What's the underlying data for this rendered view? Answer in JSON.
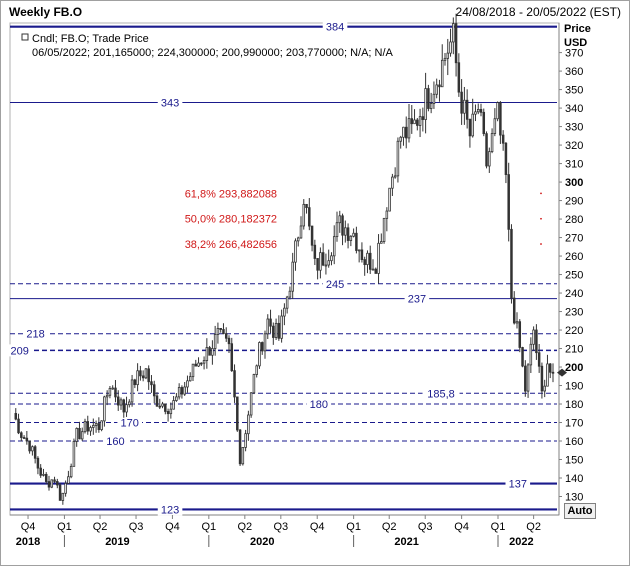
{
  "window": {
    "title": "Weekly FB.O",
    "date_range": "24/08/2018 - 20/05/2022 (EST)"
  },
  "legend": {
    "line1": "Cndl; FB.O; Trade Price",
    "line2": "06/05/2022; 201,165000; 224,300000; 200,990000; 203,770000; N/A; N/A"
  },
  "axis": {
    "price_label": "Price",
    "currency_label": "USD",
    "auto_button": "Auto"
  },
  "colors": {
    "level_line": "#1a1a8c",
    "fib_text": "#d01818",
    "candle": "#333333"
  },
  "chart_data": {
    "type": "candlestick",
    "ylim": [
      120,
      386
    ],
    "y_ticks": [
      130,
      140,
      150,
      160,
      170,
      180,
      190,
      200,
      210,
      220,
      230,
      240,
      250,
      260,
      270,
      280,
      290,
      300,
      310,
      320,
      330,
      340,
      350,
      360,
      370
    ],
    "y_ticks_bold": [
      200,
      300
    ],
    "x_ticks": [
      {
        "label": "Q4",
        "date": "2018-10-01"
      },
      {
        "label": "Q1",
        "date": "2019-01-01"
      },
      {
        "label": "Q2",
        "date": "2019-04-01"
      },
      {
        "label": "Q3",
        "date": "2019-07-01"
      },
      {
        "label": "Q4",
        "date": "2019-10-01"
      },
      {
        "label": "Q1",
        "date": "2020-01-01"
      },
      {
        "label": "Q2",
        "date": "2020-04-01"
      },
      {
        "label": "Q3",
        "date": "2020-07-01"
      },
      {
        "label": "Q4",
        "date": "2020-10-01"
      },
      {
        "label": "Q1",
        "date": "2021-01-01"
      },
      {
        "label": "Q2",
        "date": "2021-04-01"
      },
      {
        "label": "Q3",
        "date": "2021-07-01"
      },
      {
        "label": "Q4",
        "date": "2021-10-01"
      },
      {
        "label": "Q1",
        "date": "2022-01-01"
      },
      {
        "label": "Q2",
        "date": "2022-04-01"
      }
    ],
    "x_years": [
      {
        "label": "2018",
        "date": "2018-10-01"
      },
      {
        "label": "2019",
        "date": "2019-05-15"
      },
      {
        "label": "2020",
        "date": "2020-05-15"
      },
      {
        "label": "2021",
        "date": "2021-05-15"
      },
      {
        "label": "2022",
        "date": "2022-03-01"
      }
    ],
    "x_year_dividers": [
      "2019-01-01",
      "2020-01-01",
      "2021-01-01",
      "2022-01-01"
    ],
    "x_range": [
      "2018-08-24",
      "2022-05-20"
    ],
    "levels": [
      {
        "value": 384,
        "label": "384",
        "style": "thick",
        "label_date": "2020-11-15"
      },
      {
        "value": 343,
        "label": "343",
        "style": "solid",
        "label_date": "2019-09-25"
      },
      {
        "value": 245,
        "label": "245",
        "style": "dashed",
        "label_date": "2020-11-15"
      },
      {
        "value": 237,
        "label": "237",
        "style": "solid",
        "label_date": "2021-06-10"
      },
      {
        "value": 218,
        "label": "218",
        "style": "dashed",
        "label_date": "2018-10-20"
      },
      {
        "value": 209,
        "label": "209",
        "style": "thickdashed",
        "label_date": "2018-09-10"
      },
      {
        "value": 185.8,
        "label": "185,8",
        "style": "dashed",
        "label_date": "2021-08-10"
      },
      {
        "value": 180,
        "label": "180",
        "style": "dashed",
        "label_date": "2020-10-05"
      },
      {
        "value": 170,
        "label": "170",
        "style": "dashed",
        "label_date": "2019-06-15"
      },
      {
        "value": 160,
        "label": "160",
        "style": "dashed",
        "label_date": "2019-05-10"
      },
      {
        "value": 137,
        "label": "137",
        "style": "thick",
        "label_date": "2022-02-20"
      },
      {
        "value": 123,
        "label": "123",
        "style": "thick",
        "label_date": "2019-09-25"
      }
    ],
    "fib_levels": [
      {
        "value": 293.882088,
        "label": "61,8% 293,882088",
        "label_date": "2019-11-01"
      },
      {
        "value": 280.182372,
        "label": "50,0% 280,182372",
        "label_date": "2019-11-01"
      },
      {
        "value": 266.482656,
        "label": "38,2% 266,482656",
        "label_date": "2019-11-01"
      }
    ],
    "anchors": [
      [
        "2018-08-24",
        175
      ],
      [
        "2018-09-14",
        164
      ],
      [
        "2018-10-05",
        158
      ],
      [
        "2018-10-26",
        146
      ],
      [
        "2018-11-16",
        137
      ],
      [
        "2018-12-07",
        140
      ],
      [
        "2018-12-24",
        128
      ],
      [
        "2019-01-11",
        143
      ],
      [
        "2019-02-01",
        163
      ],
      [
        "2019-03-01",
        168
      ],
      [
        "2019-03-29",
        168
      ],
      [
        "2019-04-26",
        191
      ],
      [
        "2019-05-31",
        177
      ],
      [
        "2019-06-28",
        193
      ],
      [
        "2019-07-26",
        198
      ],
      [
        "2019-08-16",
        183
      ],
      [
        "2019-09-27",
        178
      ],
      [
        "2019-10-25",
        187
      ],
      [
        "2019-11-29",
        201
      ],
      [
        "2019-12-27",
        208
      ],
      [
        "2020-01-24",
        217
      ],
      [
        "2020-02-21",
        210
      ],
      [
        "2020-03-13",
        170
      ],
      [
        "2020-03-20",
        149
      ],
      [
        "2020-04-10",
        175
      ],
      [
        "2020-05-01",
        203
      ],
      [
        "2020-05-29",
        225
      ],
      [
        "2020-06-26",
        216
      ],
      [
        "2020-07-31",
        253
      ],
      [
        "2020-08-28",
        293
      ],
      [
        "2020-09-25",
        254
      ],
      [
        "2020-10-30",
        263
      ],
      [
        "2020-11-27",
        277
      ],
      [
        "2020-12-31",
        273
      ],
      [
        "2021-01-29",
        258
      ],
      [
        "2021-02-26",
        257
      ],
      [
        "2021-03-26",
        290
      ],
      [
        "2021-04-30",
        325
      ],
      [
        "2021-05-28",
        328
      ],
      [
        "2021-06-25",
        341
      ],
      [
        "2021-07-30",
        356
      ],
      [
        "2021-08-27",
        372
      ],
      [
        "2021-09-10",
        378
      ],
      [
        "2021-09-24",
        350
      ],
      [
        "2021-10-22",
        325
      ],
      [
        "2021-11-12",
        340
      ],
      [
        "2021-12-03",
        310
      ],
      [
        "2021-12-31",
        336
      ],
      [
        "2022-01-21",
        302
      ],
      [
        "2022-02-04",
        238
      ],
      [
        "2022-02-25",
        210
      ],
      [
        "2022-03-11",
        188
      ],
      [
        "2022-04-01",
        220
      ],
      [
        "2022-04-22",
        185
      ],
      [
        "2022-05-06",
        203
      ],
      [
        "2022-05-20",
        192
      ]
    ],
    "last_price": 197
  }
}
